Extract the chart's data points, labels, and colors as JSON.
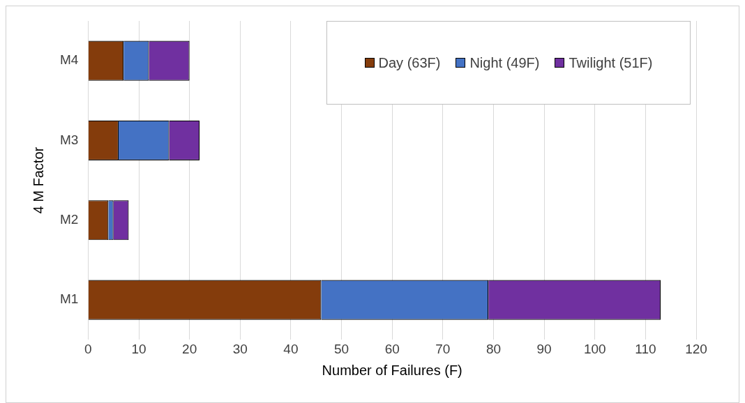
{
  "chart_data": {
    "type": "bar",
    "orientation": "horizontal",
    "stacked": true,
    "xlabel": "Number of Failures (F)",
    "ylabel": "4 M Factor",
    "categories": [
      "M4",
      "M3",
      "M2",
      "M1"
    ],
    "series": [
      {
        "name": "Day (63F)",
        "color": "#843c0c",
        "values": [
          7,
          6,
          4,
          46
        ]
      },
      {
        "name": "Night (49F)",
        "color": "#4472c4",
        "values": [
          5,
          10,
          1,
          33
        ]
      },
      {
        "name": "Twilight (51F)",
        "color": "#7030a0",
        "values": [
          8,
          6,
          3,
          34
        ]
      }
    ],
    "xlim": [
      0,
      120
    ],
    "xticks": [
      0,
      10,
      20,
      30,
      40,
      50,
      60,
      70,
      80,
      90,
      100,
      110,
      120
    ],
    "grid": "x",
    "legend": "top right"
  }
}
